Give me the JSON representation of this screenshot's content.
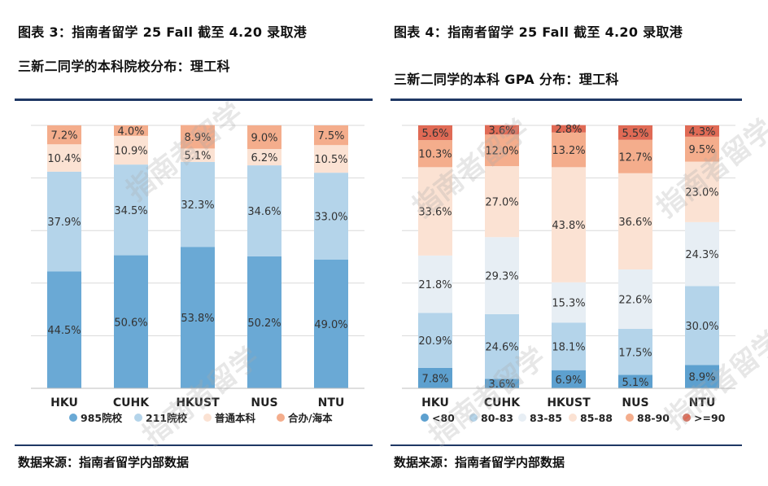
{
  "left": {
    "title_line1": "图表 3：指南者留学 25 Fall 截至 4.20 录取港",
    "title_line2": "三新二同学的本科院校分布：理工科",
    "source": "数据来源：指南者留学内部数据",
    "watermark": "指南者留学"
  },
  "right": {
    "title_line1": "图表 4：指南者留学 25 Fall 截至 4.20 录取港",
    "title_line2": "三新二同学的本科 GPA 分布：理工科",
    "source": "数据来源：指南者留学内部数据",
    "watermark": "指南者留学"
  },
  "chart_data": [
    {
      "type": "bar",
      "stacked": true,
      "percent": true,
      "categories": [
        "HKU",
        "CUHK",
        "HKUST",
        "NUS",
        "NTU"
      ],
      "series": [
        {
          "name": "985院校",
          "color": "#6aa9d5",
          "values": [
            44.5,
            50.6,
            53.8,
            50.2,
            49.0
          ]
        },
        {
          "name": "211院校",
          "color": "#b4d4ea",
          "values": [
            37.9,
            34.5,
            32.3,
            34.6,
            33.0
          ]
        },
        {
          "name": "普通本科",
          "color": "#fbe2d3",
          "values": [
            10.4,
            10.9,
            5.1,
            6.2,
            10.5
          ]
        },
        {
          "name": "合办/海本",
          "color": "#f4ad8c",
          "values": [
            7.2,
            4.0,
            8.9,
            9.0,
            7.5
          ]
        }
      ],
      "labels": [
        [
          "44.5%",
          "50.6%",
          "53.8%",
          "50.2%",
          "49.0%"
        ],
        [
          "37.9%",
          "34.5%",
          "32.3%",
          "34.6%",
          "33.0%"
        ],
        [
          "10.4%",
          "10.9%",
          "5.1%",
          "6.2%",
          "10.5%"
        ],
        [
          "7.2%",
          "4.0%",
          "8.9%",
          "9.0%",
          "7.5%"
        ]
      ],
      "ylim": [
        0,
        100
      ],
      "grid": true,
      "legend": "bottom"
    },
    {
      "type": "bar",
      "stacked": true,
      "percent": true,
      "categories": [
        "HKU",
        "CUHK",
        "HKUST",
        "NUS",
        "NTU"
      ],
      "series": [
        {
          "name": "<80",
          "color": "#5da0cf",
          "values": [
            7.8,
            3.6,
            6.9,
            5.1,
            8.9
          ]
        },
        {
          "name": "80-83",
          "color": "#b4d4ea",
          "values": [
            20.9,
            24.6,
            18.1,
            17.5,
            30.0
          ]
        },
        {
          "name": "83-85",
          "color": "#e7eef4",
          "values": [
            21.8,
            29.3,
            15.3,
            22.6,
            24.3
          ]
        },
        {
          "name": "85-88",
          "color": "#fbe2d3",
          "values": [
            33.6,
            27.0,
            43.8,
            36.6,
            23.0
          ]
        },
        {
          "name": "88-90",
          "color": "#f4ad8c",
          "values": [
            10.3,
            12.0,
            13.2,
            12.7,
            9.5
          ]
        },
        {
          "name": ">=90",
          "color": "#e06a55",
          "values": [
            5.6,
            3.6,
            2.8,
            5.5,
            4.3
          ]
        }
      ],
      "labels": [
        [
          "7.8%",
          "3.6%",
          "6.9%",
          "5.1%",
          "8.9%"
        ],
        [
          "20.9%",
          "24.6%",
          "18.1%",
          "17.5%",
          "30.0%"
        ],
        [
          "21.8%",
          "29.3%",
          "15.3%",
          "22.6%",
          "24.3%"
        ],
        [
          "33.6%",
          "27.0%",
          "43.8%",
          "36.6%",
          "23.0%"
        ],
        [
          "10.3%",
          "12.0%",
          "13.2%",
          "12.7%",
          "9.5%"
        ],
        [
          "5.6%",
          "3.6%",
          "2.8%",
          "5.5%",
          "4.3%"
        ]
      ],
      "ylim": [
        0,
        100
      ],
      "grid": true,
      "legend": "bottom"
    }
  ]
}
